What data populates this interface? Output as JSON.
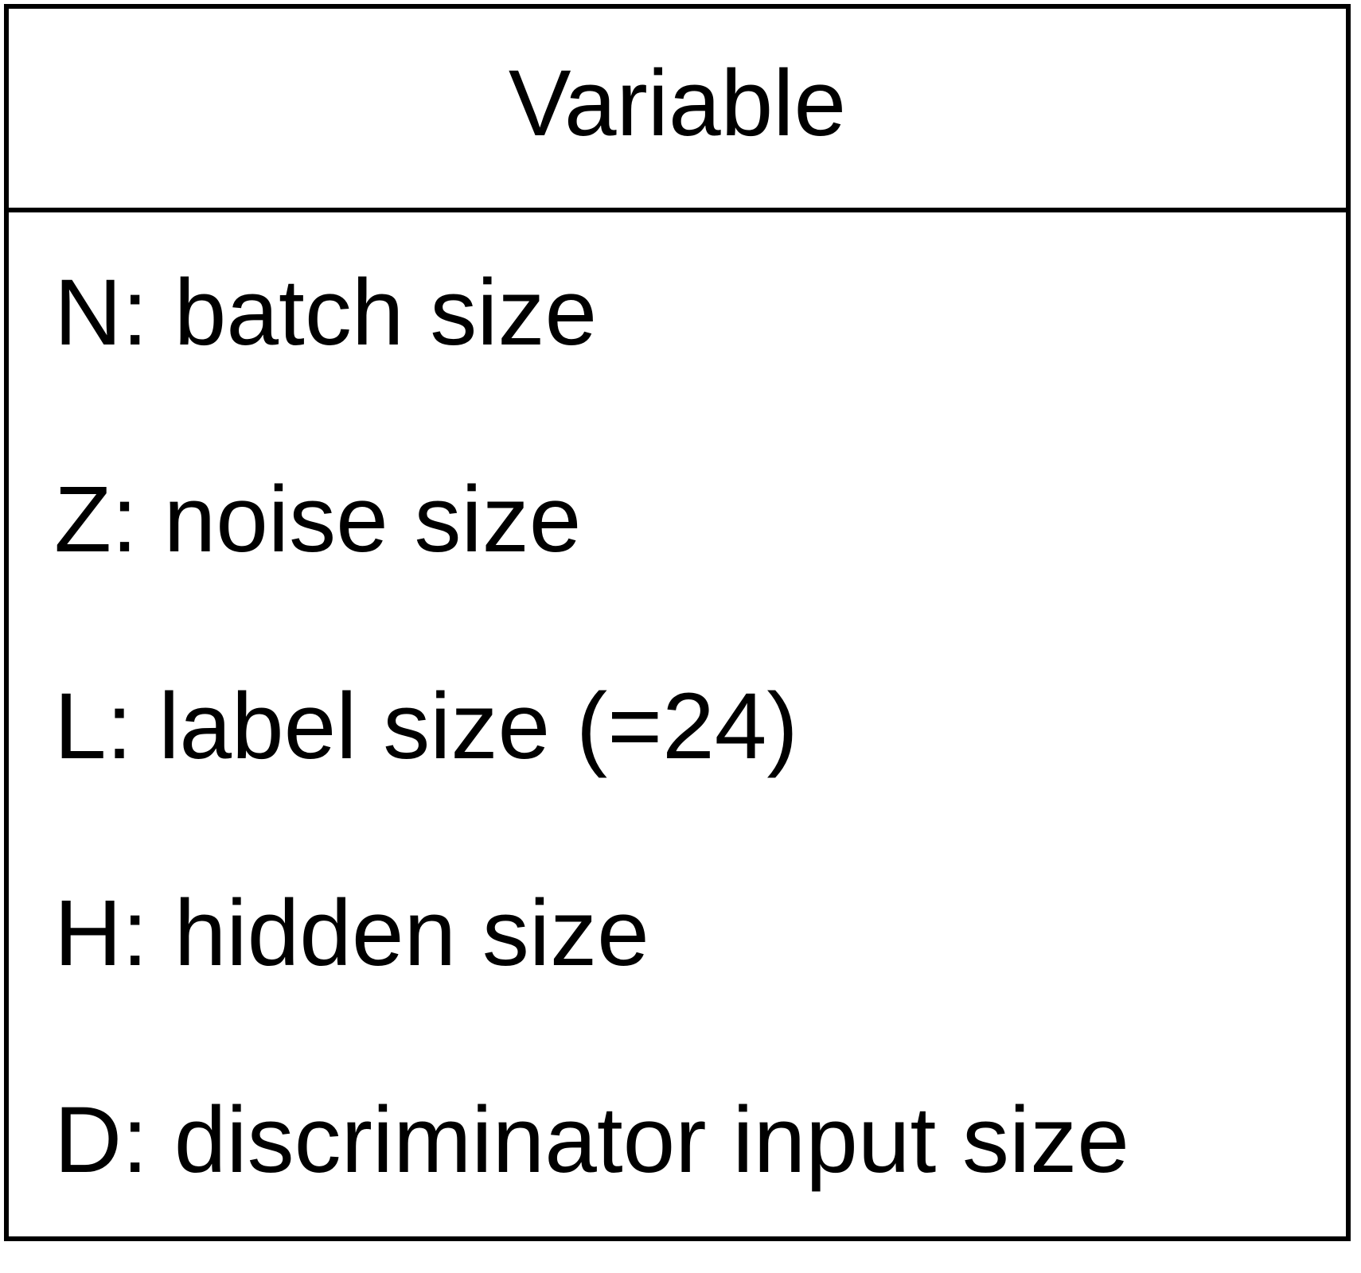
{
  "title": "Variable",
  "items": [
    "N: batch size",
    "Z: noise size",
    "L: label size (=24)",
    "H: hidden size",
    "D: discriminator input size"
  ]
}
